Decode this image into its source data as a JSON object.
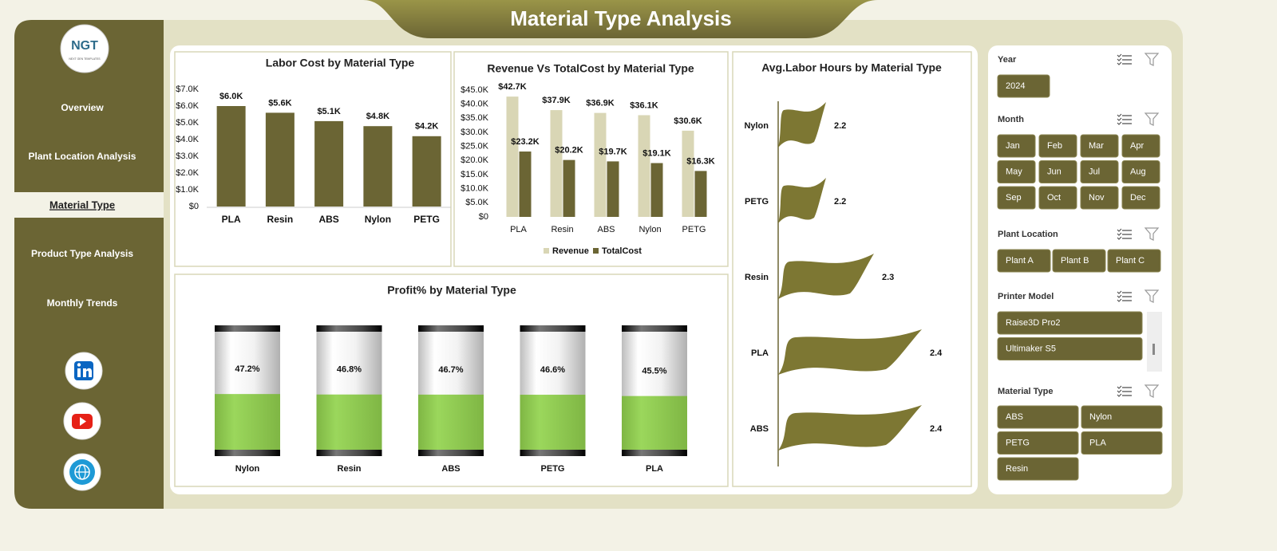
{
  "header": {
    "title": "Material Type Analysis"
  },
  "logo": {
    "title": "NGT",
    "tagline": "NEXT GEN TEMPLATES"
  },
  "nav": {
    "items": [
      "Overview",
      "Plant Location Analysis",
      "Material Type",
      "Product Type Analysis",
      "Monthly Trends"
    ]
  },
  "chart_data": [
    {
      "type": "bar",
      "title": "Labor Cost by Material Type",
      "categories": [
        "PLA",
        "Resin",
        "ABS",
        "Nylon",
        "PETG"
      ],
      "values": [
        6000,
        5600,
        5100,
        4800,
        4200
      ],
      "value_labels": [
        "$6.0K",
        "$5.6K",
        "$5.1K",
        "$4.8K",
        "$4.2K"
      ],
      "color": "#6b6534",
      "ylim": [
        0,
        7000
      ],
      "yticks": [
        {
          "value": 0,
          "label": "$0"
        },
        {
          "value": 1000,
          "label": "$1.0K"
        },
        {
          "value": 2000,
          "label": "$2.0K"
        },
        {
          "value": 3000,
          "label": "$3.0K"
        },
        {
          "value": 4000,
          "label": "$4.0K"
        },
        {
          "value": 5000,
          "label": "$5.0K"
        },
        {
          "value": 6000,
          "label": "$6.0K"
        },
        {
          "value": 7000,
          "label": "$7.0K"
        }
      ]
    },
    {
      "type": "grouped-bar",
      "title": "Revenue Vs TotalCost by Material Type",
      "categories": [
        "PLA",
        "Resin",
        "ABS",
        "Nylon",
        "PETG"
      ],
      "series": [
        {
          "name": "Revenue",
          "color": "#d9d6b5",
          "values": [
            42700,
            37900,
            36900,
            36100,
            30600
          ],
          "value_labels": [
            "$42.7K",
            "$37.9K",
            "$36.9K",
            "$36.1K",
            "$30.6K"
          ]
        },
        {
          "name": "TotalCost",
          "color": "#6b6534",
          "values": [
            23200,
            20200,
            19700,
            19100,
            16300
          ],
          "value_labels": [
            "$23.2K",
            "$20.2K",
            "$19.7K",
            "$19.1K",
            "$16.3K"
          ]
        }
      ],
      "ylim": [
        0,
        45000
      ],
      "yticks": [
        {
          "value": 0,
          "label": "$0"
        },
        {
          "value": 5000,
          "label": "$5.0K"
        },
        {
          "value": 10000,
          "label": "$10.0K"
        },
        {
          "value": 15000,
          "label": "$15.0K"
        },
        {
          "value": 20000,
          "label": "$20.0K"
        },
        {
          "value": 25000,
          "label": "$25.0K"
        },
        {
          "value": 30000,
          "label": "$30.0K"
        },
        {
          "value": 35000,
          "label": "$35.0K"
        },
        {
          "value": 40000,
          "label": "$40.0K"
        },
        {
          "value": 45000,
          "label": "$45.0K"
        }
      ],
      "legend": "bottom"
    },
    {
      "type": "cylinder",
      "title": "Profit% by Material Type",
      "categories": [
        "Nylon",
        "Resin",
        "ABS",
        "PETG",
        "PLA"
      ],
      "values": [
        47.2,
        46.8,
        46.7,
        46.6,
        45.5
      ],
      "value_labels": [
        "47.2%",
        "46.8%",
        "46.7%",
        "46.6%",
        "45.5%"
      ],
      "color": "#92d050",
      "ylim": [
        0,
        100
      ]
    },
    {
      "type": "flag",
      "title": "Avg.Labor Hours by Material Type",
      "categories": [
        "Nylon",
        "PETG",
        "Resin",
        "PLA",
        "ABS"
      ],
      "values": [
        2.2,
        2.2,
        2.3,
        2.4,
        2.4
      ],
      "color": "#7d7733",
      "xlim": [
        2.1,
        2.5
      ]
    }
  ],
  "slicers": [
    {
      "title": "Year",
      "items": [
        "2024"
      ]
    },
    {
      "title": "Month",
      "items": [
        "Jan",
        "Feb",
        "Mar",
        "Apr",
        "May",
        "Jun",
        "Jul",
        "Aug",
        "Sep",
        "Oct",
        "Nov",
        "Dec"
      ]
    },
    {
      "title": "Plant Location",
      "items": [
        "Plant A",
        "Plant B",
        "Plant C"
      ]
    },
    {
      "title": "Printer Model",
      "items": [
        "Raise3D Pro2",
        "Ultimaker S5"
      ]
    },
    {
      "title": "Material Type",
      "items": [
        "ABS",
        "Nylon",
        "PETG",
        "PLA",
        "Resin"
      ]
    }
  ]
}
